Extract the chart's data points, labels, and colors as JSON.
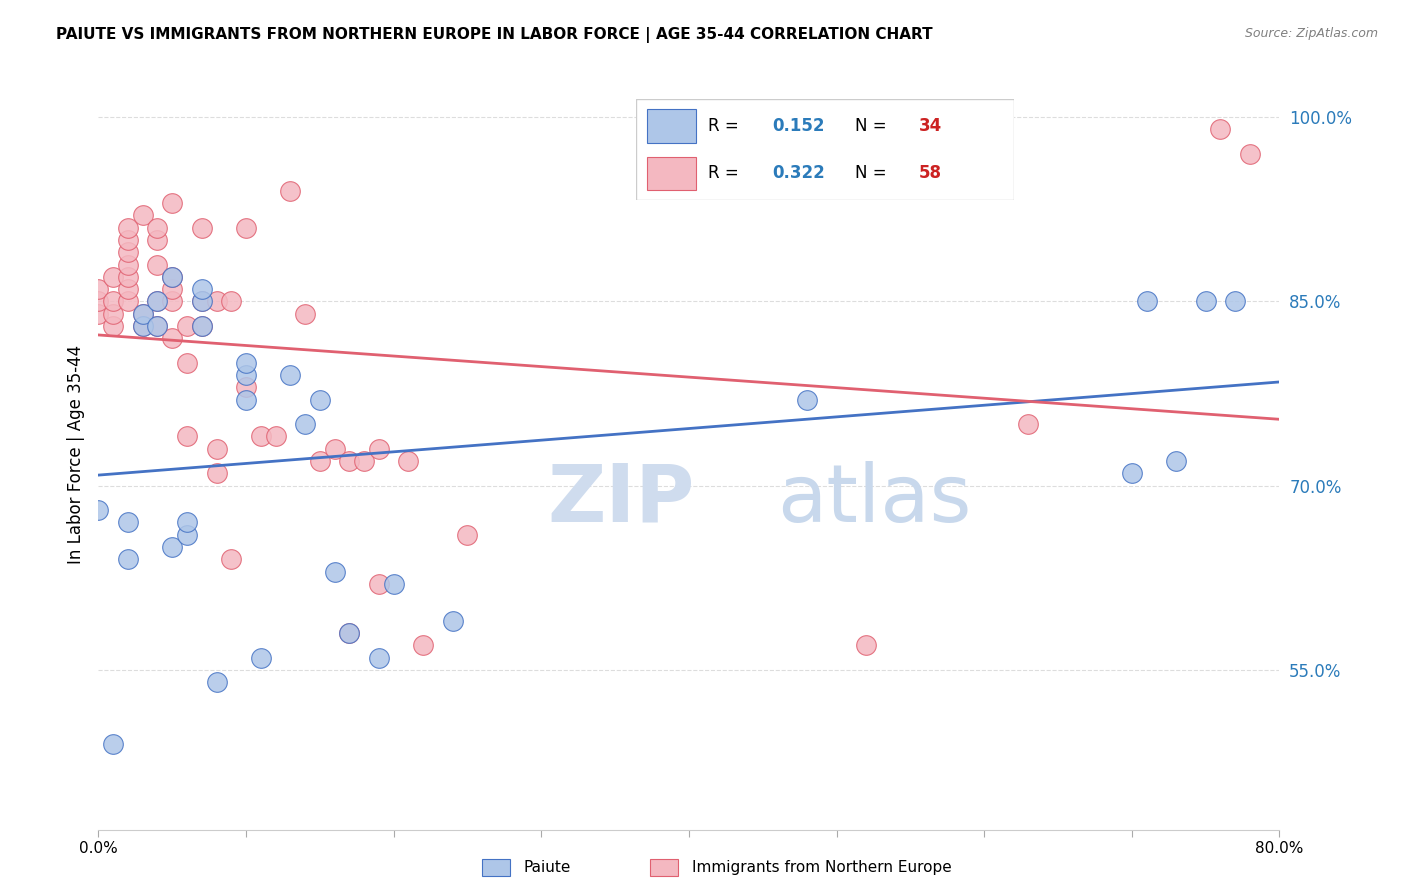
{
  "title": "PAIUTE VS IMMIGRANTS FROM NORTHERN EUROPE IN LABOR FORCE | AGE 35-44 CORRELATION CHART",
  "source": "Source: ZipAtlas.com",
  "ylabel": "In Labor Force | Age 35-44",
  "xmin": 0.0,
  "xmax": 0.8,
  "ymin": 0.42,
  "ymax": 1.03,
  "yticks": [
    0.55,
    0.7,
    0.85,
    1.0
  ],
  "ytick_labels": [
    "55.0%",
    "70.0%",
    "85.0%",
    "100.0%"
  ],
  "xticks": [
    0.0,
    0.1,
    0.2,
    0.3,
    0.4,
    0.5,
    0.6,
    0.7,
    0.8
  ],
  "xtick_labels": [
    "0.0%",
    "",
    "",
    "",
    "",
    "",
    "",
    "",
    "80.0%"
  ],
  "paiute_color": "#aec6e8",
  "immigrant_color": "#f4b8c1",
  "paiute_line_color": "#4472c4",
  "immigrant_line_color": "#e06070",
  "paiute_R": 0.152,
  "paiute_N": 34,
  "immigrant_R": 0.322,
  "immigrant_N": 58,
  "legend_R_color": "#2b7bba",
  "legend_N_color": "#cc2222",
  "watermark_color": "#cfdcee",
  "paiute_x": [
    0.0,
    0.01,
    0.02,
    0.02,
    0.03,
    0.03,
    0.04,
    0.04,
    0.05,
    0.05,
    0.06,
    0.06,
    0.07,
    0.07,
    0.07,
    0.08,
    0.1,
    0.1,
    0.1,
    0.11,
    0.13,
    0.14,
    0.15,
    0.16,
    0.17,
    0.19,
    0.2,
    0.24,
    0.48,
    0.7,
    0.71,
    0.73,
    0.75,
    0.77
  ],
  "paiute_y": [
    0.68,
    0.49,
    0.64,
    0.67,
    0.83,
    0.84,
    0.83,
    0.85,
    0.87,
    0.65,
    0.66,
    0.67,
    0.83,
    0.85,
    0.86,
    0.54,
    0.77,
    0.79,
    0.8,
    0.56,
    0.79,
    0.75,
    0.77,
    0.63,
    0.58,
    0.56,
    0.62,
    0.59,
    0.77,
    0.71,
    0.85,
    0.72,
    0.85,
    0.85
  ],
  "immigrant_x": [
    0.0,
    0.0,
    0.0,
    0.01,
    0.01,
    0.01,
    0.01,
    0.02,
    0.02,
    0.02,
    0.02,
    0.02,
    0.02,
    0.02,
    0.03,
    0.03,
    0.03,
    0.04,
    0.04,
    0.04,
    0.04,
    0.04,
    0.05,
    0.05,
    0.05,
    0.05,
    0.05,
    0.06,
    0.06,
    0.06,
    0.07,
    0.07,
    0.07,
    0.08,
    0.08,
    0.08,
    0.09,
    0.09,
    0.1,
    0.1,
    0.11,
    0.12,
    0.13,
    0.14,
    0.15,
    0.16,
    0.17,
    0.17,
    0.18,
    0.19,
    0.19,
    0.21,
    0.22,
    0.25,
    0.52,
    0.63,
    0.76,
    0.78
  ],
  "immigrant_y": [
    0.84,
    0.85,
    0.86,
    0.83,
    0.84,
    0.85,
    0.87,
    0.85,
    0.86,
    0.87,
    0.88,
    0.89,
    0.9,
    0.91,
    0.83,
    0.84,
    0.92,
    0.83,
    0.85,
    0.88,
    0.9,
    0.91,
    0.82,
    0.85,
    0.86,
    0.87,
    0.93,
    0.74,
    0.8,
    0.83,
    0.83,
    0.85,
    0.91,
    0.71,
    0.73,
    0.85,
    0.64,
    0.85,
    0.78,
    0.91,
    0.74,
    0.74,
    0.94,
    0.84,
    0.72,
    0.73,
    0.58,
    0.72,
    0.72,
    0.62,
    0.73,
    0.72,
    0.57,
    0.66,
    0.57,
    0.75,
    0.99,
    0.97
  ]
}
